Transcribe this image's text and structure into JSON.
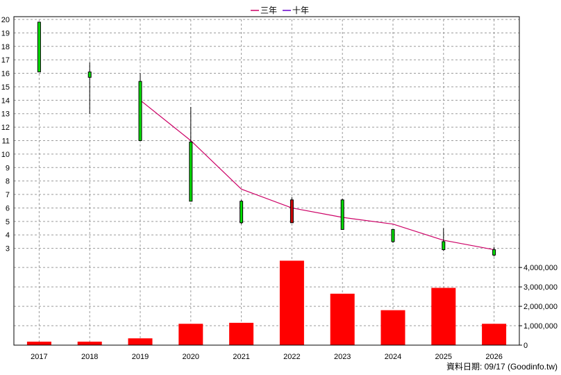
{
  "chart_data": {
    "type": "candlestick+bar",
    "legend": {
      "placement": "top-center",
      "items": [
        {
          "name": "三年",
          "color": "#cc0066"
        },
        {
          "name": "十年",
          "color": "#6600cc"
        }
      ]
    },
    "categories": [
      "2017",
      "2018",
      "2019",
      "2020",
      "2021",
      "2022",
      "2023",
      "2024",
      "2025",
      "2026"
    ],
    "price_axis": {
      "min": 2,
      "max": 20,
      "ticks": [
        "3",
        "4",
        "5",
        "6",
        "7",
        "8",
        "9",
        "10",
        "11",
        "12",
        "13",
        "14",
        "15",
        "16",
        "17",
        "18",
        "19",
        "20"
      ]
    },
    "volume_axis": {
      "min": 0,
      "max": 4400000,
      "ticks": [
        "0",
        "1,000,000",
        "2,000,000",
        "3,000,000",
        "4,000,000"
      ]
    },
    "candles": [
      {
        "x": "2017",
        "open": 16.1,
        "close": 19.8,
        "high": 19.8,
        "low": 16.1,
        "color": "#00dd00"
      },
      {
        "x": "2018",
        "open": 15.7,
        "close": 16.1,
        "high": 16.8,
        "low": 13.0,
        "color": "#00dd00"
      },
      {
        "x": "2019",
        "open": 11.0,
        "close": 15.4,
        "high": 16.0,
        "low": 11.0,
        "color": "#00dd00"
      },
      {
        "x": "2020",
        "open": 6.5,
        "close": 10.9,
        "high": 13.5,
        "low": 6.5,
        "color": "#00dd00"
      },
      {
        "x": "2021",
        "open": 4.9,
        "close": 6.5,
        "high": 6.6,
        "low": 4.8,
        "color": "#00dd00"
      },
      {
        "x": "2022",
        "open": 6.6,
        "close": 4.9,
        "high": 6.8,
        "low": 4.9,
        "color": "#cc0000"
      },
      {
        "x": "2023",
        "open": 4.4,
        "close": 6.6,
        "high": 6.7,
        "low": 4.4,
        "color": "#00dd00"
      },
      {
        "x": "2024",
        "open": 3.5,
        "close": 4.4,
        "high": 4.4,
        "low": 3.4,
        "color": "#00dd00"
      },
      {
        "x": "2025",
        "open": 2.9,
        "close": 3.5,
        "high": 4.5,
        "low": 2.8,
        "color": "#00dd00"
      },
      {
        "x": "2026",
        "open": 2.5,
        "close": 2.9,
        "high": 3.1,
        "low": 2.4,
        "color": "#00dd00"
      }
    ],
    "three_year_line": {
      "name": "三年",
      "color": "#cc0066",
      "points": [
        {
          "x": "2019",
          "y": 14.0
        },
        {
          "x": "2020",
          "y": 11.0
        },
        {
          "x": "2021",
          "y": 7.4
        },
        {
          "x": "2022",
          "y": 6.0
        },
        {
          "x": "2023",
          "y": 5.3
        },
        {
          "x": "2024",
          "y": 4.8
        },
        {
          "x": "2025",
          "y": 3.6
        },
        {
          "x": "2026",
          "y": 2.9
        }
      ]
    },
    "volume": {
      "color": "#ff0000",
      "values": [
        180000,
        180000,
        350000,
        1100000,
        1150000,
        4350000,
        2650000,
        1800000,
        2950000,
        1100000
      ]
    },
    "grid": true
  },
  "footer": {
    "text": "資料日期: 09/17  (Goodinfo.tw)"
  }
}
